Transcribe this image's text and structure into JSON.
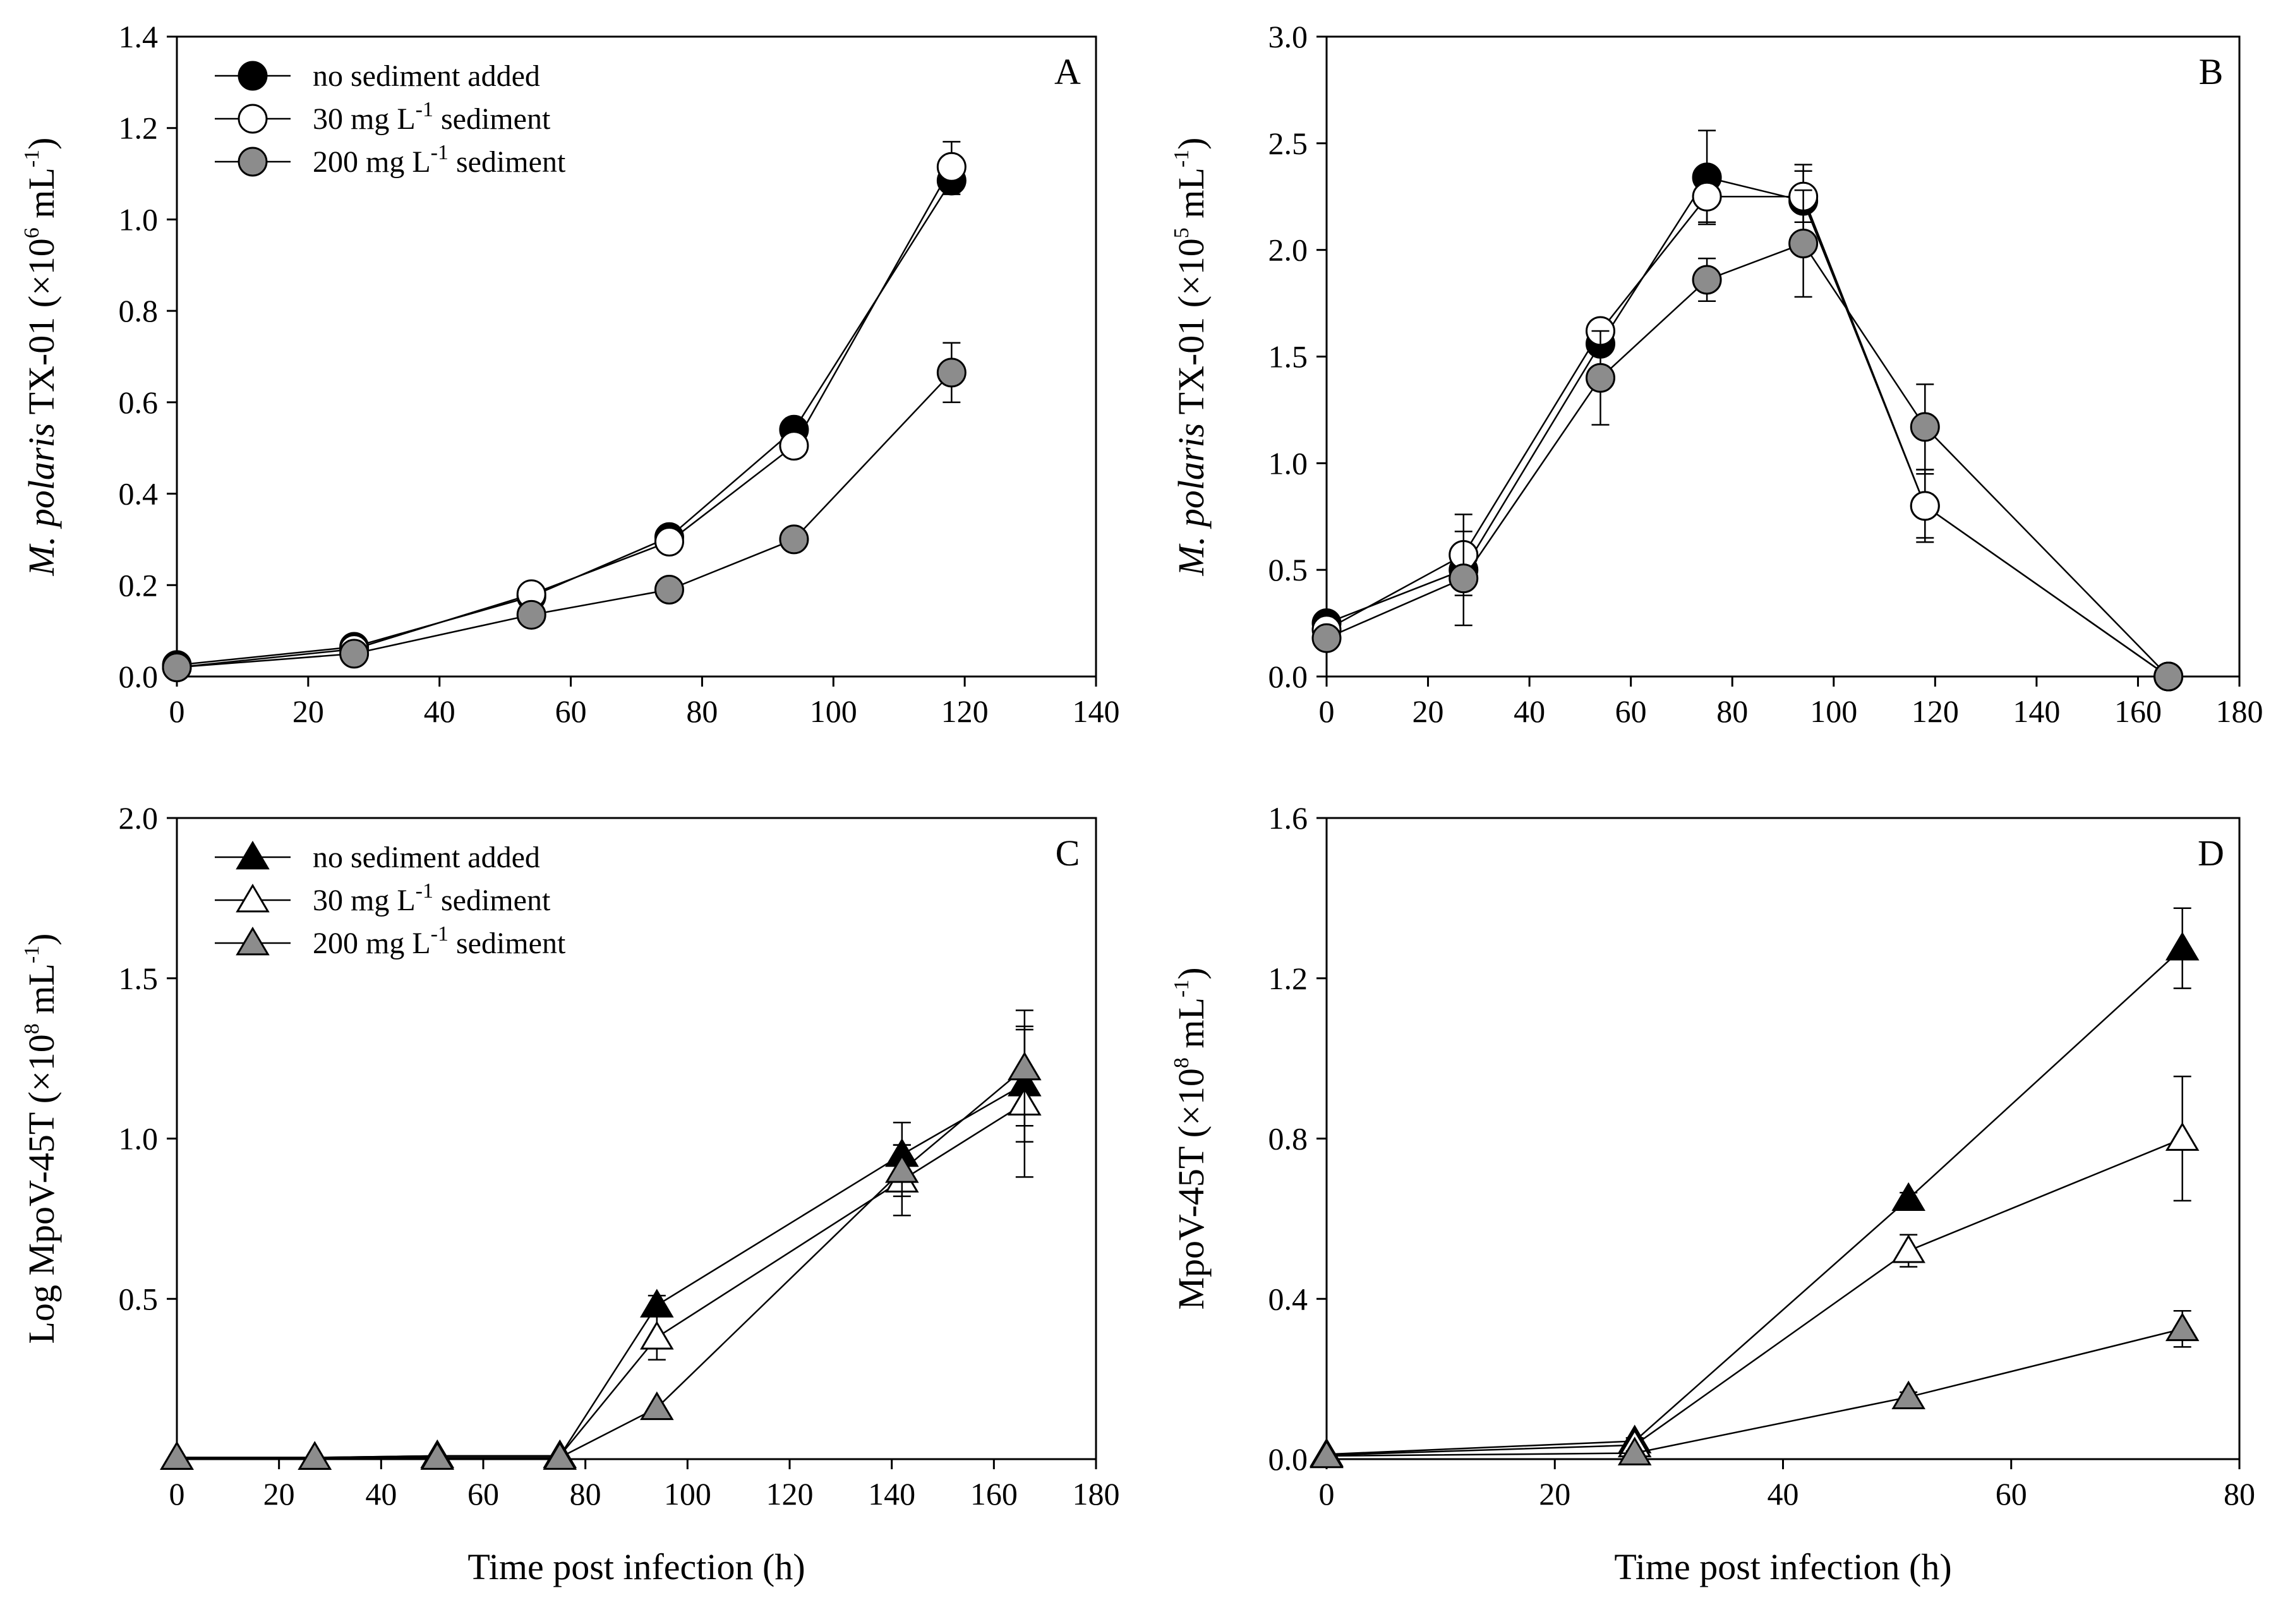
{
  "figure": {
    "colors": {
      "black": "#000000",
      "white": "#ffffff",
      "gray": "#8c8c8c"
    }
  },
  "chart_data": [
    {
      "panel": "A",
      "type": "line",
      "marker": "circle",
      "ylabel": {
        "italic": "M. polaris",
        "text": " TX-01 (×10",
        "sup": "6",
        "text2": " mL",
        "sup2": "-1",
        "text3": ")"
      },
      "xlabel": "",
      "xlim": [
        0,
        140
      ],
      "ylim": [
        0,
        1.4
      ],
      "xticks": [
        "0",
        "20",
        "40",
        "60",
        "80",
        "100",
        "120",
        "140"
      ],
      "yticks": [
        "0.0",
        "0.2",
        "0.4",
        "0.6",
        "0.8",
        "1.0",
        "1.2",
        "1.4"
      ],
      "legend": [
        {
          "label": "no sediment added",
          "sup": "",
          "after": ""
        },
        {
          "label": "30 mg L",
          "sup": "-1",
          "after": " sediment"
        },
        {
          "label": "200 mg L",
          "sup": "-1",
          "after": " sediment"
        }
      ],
      "series": [
        {
          "name": "no sediment added",
          "fill": "black",
          "x": [
            0,
            27,
            54,
            75,
            94,
            118
          ],
          "y": [
            0.025,
            0.065,
            0.175,
            0.305,
            0.54,
            1.085
          ],
          "err": [
            0.008,
            0.01,
            0.012,
            0.025,
            0.025,
            0.03
          ]
        },
        {
          "name": "30 mg L-1 sediment",
          "fill": "white",
          "x": [
            0,
            27,
            54,
            75,
            94,
            118
          ],
          "y": [
            0.02,
            0.06,
            0.18,
            0.295,
            0.505,
            1.115
          ],
          "err": [
            0.008,
            0.01,
            0.012,
            0.02,
            0.02,
            0.055
          ]
        },
        {
          "name": "200 mg L-1 sediment",
          "fill": "gray",
          "x": [
            0,
            27,
            54,
            75,
            94,
            118
          ],
          "y": [
            0.02,
            0.05,
            0.135,
            0.19,
            0.3,
            0.665
          ],
          "err": [
            0.008,
            0.008,
            0.012,
            0.015,
            0.02,
            0.065
          ]
        }
      ]
    },
    {
      "panel": "B",
      "type": "line",
      "marker": "circle",
      "ylabel": {
        "italic": "M. polaris",
        "text": " TX-01 (×10",
        "sup": "5",
        "text2": " mL",
        "sup2": "-1",
        "text3": ")"
      },
      "xlabel": "",
      "xlim": [
        0,
        180
      ],
      "ylim": [
        0,
        3.0
      ],
      "xticks": [
        "0",
        "20",
        "40",
        "60",
        "80",
        "100",
        "120",
        "140",
        "160",
        "180"
      ],
      "yticks": [
        "0.0",
        "0.5",
        "1.0",
        "1.5",
        "2.0",
        "2.5",
        "3.0"
      ],
      "legend": [],
      "series": [
        {
          "name": "no sediment added",
          "fill": "black",
          "x": [
            0,
            27,
            54,
            75,
            94,
            118,
            166
          ],
          "y": [
            0.25,
            0.5,
            1.56,
            2.34,
            2.23,
            0.8,
            0.0
          ],
          "err": [
            0.03,
            0.05,
            0.05,
            0.22,
            0.17,
            0.17,
            0.0
          ]
        },
        {
          "name": "30 mg L-1 sediment",
          "fill": "white",
          "x": [
            0,
            27,
            54,
            75,
            94,
            118,
            166
          ],
          "y": [
            0.22,
            0.57,
            1.62,
            2.25,
            2.25,
            0.8,
            0.0
          ],
          "err": [
            0.03,
            0.19,
            0.04,
            0.12,
            0.12,
            0.15,
            0.0
          ]
        },
        {
          "name": "200 mg L-1 sediment",
          "fill": "gray",
          "x": [
            0,
            27,
            54,
            75,
            94,
            118,
            166
          ],
          "y": [
            0.18,
            0.46,
            1.4,
            1.86,
            2.03,
            1.17,
            0.0
          ],
          "err": [
            0.03,
            0.22,
            0.22,
            0.1,
            0.25,
            0.2,
            0.0
          ]
        }
      ]
    },
    {
      "panel": "C",
      "type": "line",
      "marker": "triangle",
      "ylabel": {
        "italic": "",
        "text": "Log MpoV-45T (×10",
        "sup": "8",
        "text2": " mL",
        "sup2": "-1",
        "text3": ")"
      },
      "xlabel": "Time post infection (h)",
      "xlim": [
        0,
        180
      ],
      "ylim": [
        0,
        2.0
      ],
      "xticks": [
        "0",
        "20",
        "40",
        "60",
        "80",
        "100",
        "120",
        "140",
        "160",
        "180"
      ],
      "yticks": [
        "",
        "0.5",
        "1.0",
        "1.5",
        "2.0"
      ],
      "legend": [
        {
          "label": "no sediment added",
          "sup": "",
          "after": ""
        },
        {
          "label": "30 mg L",
          "sup": "-1",
          "after": " sediment"
        },
        {
          "label": "200 mg L",
          "sup": "-1",
          "after": " sediment"
        }
      ],
      "series": [
        {
          "name": "no sediment added",
          "fill": "black",
          "x": [
            0,
            27,
            51,
            75,
            94,
            142,
            166
          ],
          "y": [
            0.005,
            0.005,
            0.01,
            0.01,
            0.48,
            0.95,
            1.17
          ],
          "err": [
            0,
            0,
            0,
            0,
            0.03,
            0.1,
            0.18
          ]
        },
        {
          "name": "30 mg L-1 sediment",
          "fill": "white",
          "x": [
            0,
            27,
            51,
            75,
            94,
            142,
            166
          ],
          "y": [
            0.005,
            0.005,
            0.01,
            0.01,
            0.38,
            0.87,
            1.11
          ],
          "err": [
            0,
            0,
            0,
            0,
            0.07,
            0.11,
            0.23
          ]
        },
        {
          "name": "200 mg L-1 sediment",
          "fill": "gray",
          "x": [
            0,
            27,
            51,
            75,
            94,
            142,
            166
          ],
          "y": [
            0.005,
            0.005,
            0.005,
            0.005,
            0.16,
            0.9,
            1.22
          ],
          "err": [
            0,
            0,
            0,
            0,
            0,
            0.08,
            0.18
          ]
        }
      ]
    },
    {
      "panel": "D",
      "type": "line",
      "marker": "triangle",
      "ylabel": {
        "italic": "",
        "text": "MpoV-45T (×10",
        "sup": "8",
        "text2": " mL",
        "sup2": "-1",
        "text3": ")"
      },
      "xlabel": "Time post infection (h)",
      "xlim": [
        0,
        80
      ],
      "ylim": [
        0,
        1.6
      ],
      "xticks": [
        "0",
        "20",
        "40",
        "60",
        "80"
      ],
      "yticks": [
        "0.0",
        "0.4",
        "0.8",
        "1.2",
        "1.6"
      ],
      "legend": [],
      "series": [
        {
          "name": "no sediment added",
          "fill": "black",
          "x": [
            0,
            27,
            51,
            75
          ],
          "y": [
            0.012,
            0.045,
            0.65,
            1.275
          ],
          "err": [
            0,
            0.008,
            0.015,
            0.1
          ]
        },
        {
          "name": "30 mg L-1 sediment",
          "fill": "white",
          "x": [
            0,
            27,
            51,
            75
          ],
          "y": [
            0.01,
            0.035,
            0.52,
            0.8
          ],
          "err": [
            0,
            0.008,
            0.04,
            0.155
          ]
        },
        {
          "name": "200 mg L-1 sediment",
          "fill": "gray",
          "x": [
            0,
            27,
            51,
            75
          ],
          "y": [
            0.008,
            0.015,
            0.155,
            0.325
          ],
          "err": [
            0,
            0.005,
            0.012,
            0.045
          ]
        }
      ]
    }
  ]
}
